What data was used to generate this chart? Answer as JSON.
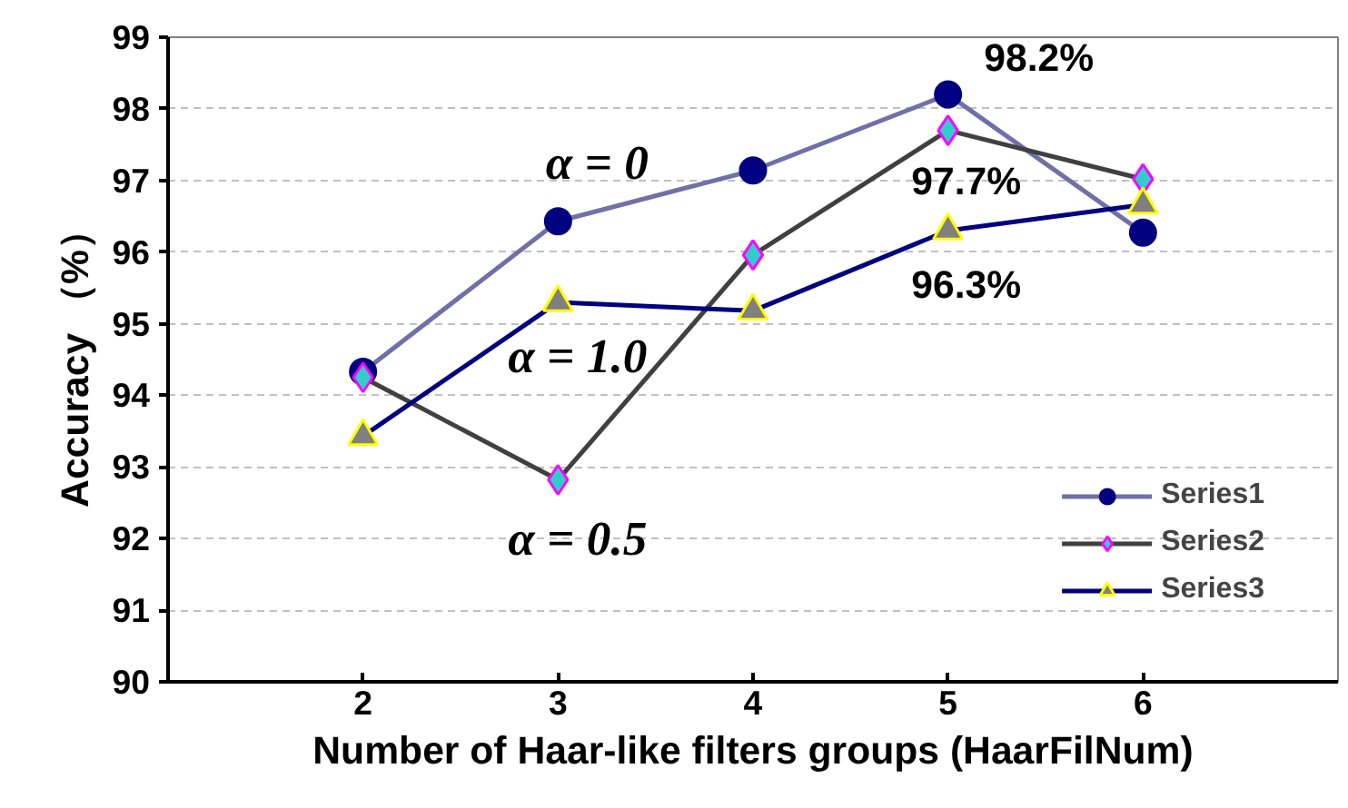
{
  "chart_data": {
    "type": "line",
    "xlabel": "Number of Haar-like filters groups (HaarFilNum)",
    "ylabel": "Accuracy （%）",
    "x": [
      2,
      3,
      4,
      5,
      6
    ],
    "xlim": [
      1,
      7
    ],
    "xticks": [
      2,
      3,
      4,
      5,
      6
    ],
    "ylim": [
      90,
      99
    ],
    "yticks": [
      90,
      91,
      92,
      93,
      94,
      95,
      96,
      97,
      98,
      99
    ],
    "grid": "y",
    "legend": "bottom right",
    "series": [
      {
        "name": "Series1",
        "color": "#7070a8",
        "marker": "circle",
        "values": [
          94.33,
          96.43,
          97.14,
          98.2,
          96.27
        ],
        "value_labels": [
          null,
          null,
          null,
          "98.2%",
          null
        ]
      },
      {
        "name": "Series2",
        "color": "#404040",
        "marker": "diamond",
        "values": [
          94.25,
          92.82,
          95.96,
          97.7,
          97.02
        ],
        "value_labels": [
          null,
          null,
          null,
          "97.7%",
          null
        ]
      },
      {
        "name": "Series3",
        "color": "#000080",
        "marker": "triangle",
        "values": [
          93.43,
          95.3,
          95.18,
          96.3,
          96.66
        ],
        "value_labels": [
          null,
          null,
          null,
          "96.3%",
          null
        ]
      }
    ],
    "annotations": [
      "α = 0",
      "α = 1.0",
      "α = 0.5"
    ]
  }
}
